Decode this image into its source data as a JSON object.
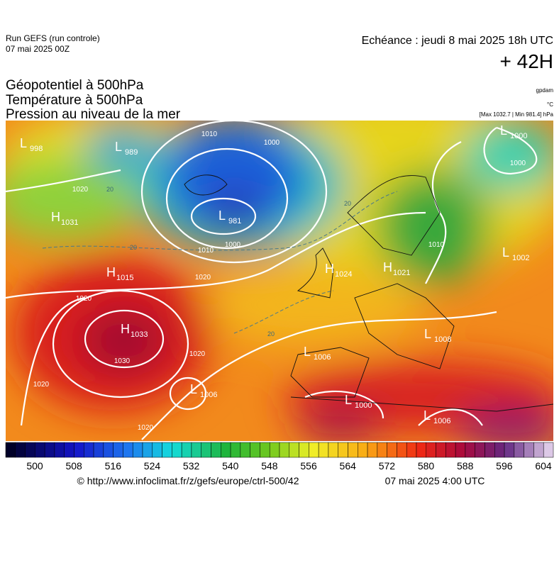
{
  "header": {
    "run": "Run GEFS (run controle)",
    "run_date": "07 mai 2025 00Z",
    "valid": "Echéance : jeudi 8 mai 2025 18h UTC",
    "lead": "+ 42H",
    "fields": [
      "Géopotentiel à 500hPa",
      "Température à 500hPa",
      "Pression au niveau de la mer"
    ],
    "units": [
      "gpdam",
      "°C",
      "[Max 1032.7 | Min 981.4] hPa"
    ]
  },
  "map": {
    "systems": [
      {
        "kind": "L",
        "value": "998"
      },
      {
        "kind": "L",
        "value": "989"
      },
      {
        "kind": "L",
        "value": "981"
      },
      {
        "kind": "H",
        "value": "1031"
      },
      {
        "kind": "H",
        "value": "1015"
      },
      {
        "kind": "H",
        "value": "1033"
      },
      {
        "kind": "L",
        "value": "1006"
      },
      {
        "kind": "H",
        "value": "1024"
      },
      {
        "kind": "H",
        "value": "1021"
      },
      {
        "kind": "L",
        "value": "1000"
      },
      {
        "kind": "L",
        "value": "1002"
      },
      {
        "kind": "L",
        "value": "1008"
      },
      {
        "kind": "L",
        "value": "1006"
      },
      {
        "kind": "L",
        "value": "1000"
      },
      {
        "kind": "L",
        "value": "1006"
      }
    ],
    "isobar_labels": [
      "1010",
      "1000",
      "1020",
      "1010",
      "1000",
      "1020",
      "1020",
      "1030",
      "1020",
      "1020",
      "1020",
      "1010",
      "1000"
    ],
    "temperature_labels": [
      "20",
      "20",
      "20",
      "20"
    ]
  },
  "colorbar": {
    "ticks": [
      "500",
      "508",
      "516",
      "524",
      "532",
      "540",
      "548",
      "556",
      "564",
      "572",
      "580",
      "588",
      "596",
      "604"
    ]
  },
  "footer": {
    "source": "© http://www.infoclimat.fr/z/gefs/europe/ctrl-500/42",
    "issued": "07 mai 2025  4:00 UTC"
  }
}
